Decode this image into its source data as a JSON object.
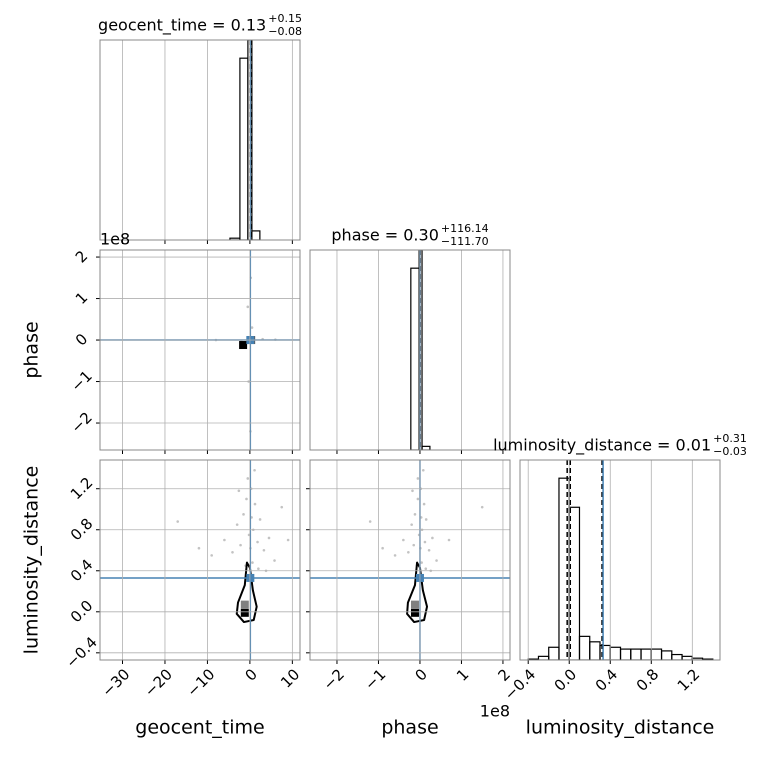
{
  "chart_data": [
    {
      "type": "hist",
      "title": "geocent_time = 0.13",
      "title_sup": "+0.15",
      "title_sub": "−0.08",
      "bins": [
        -4.7,
        -2.35,
        -0.47,
        0.47,
        2.35
      ],
      "counts": [
        0.01,
        1.0,
        1.1,
        0.05
      ],
      "xlim": [
        -35.3,
        11.8
      ],
      "ylim": [
        0,
        1.1
      ],
      "xticks": [
        -30,
        -20,
        -10,
        0,
        10
      ],
      "show_xticklabels": false,
      "quantiles": [
        0.05,
        0.13,
        0.28
      ],
      "truth": 0.1,
      "color": "#000000",
      "truth_color": "#4682b4",
      "grid": true
    },
    {
      "type": "scatter",
      "y_offset": "1e8",
      "xlim": [
        -35.3,
        11.8
      ],
      "ylim": [
        -2.65,
        2.17
      ],
      "xticks": [
        -30,
        -20,
        -10,
        0,
        10
      ],
      "show_xticklabels": false,
      "yticks": [
        {
          "value": -2,
          "label": "−2"
        },
        {
          "value": -1,
          "label": "−1"
        },
        0,
        1,
        2
      ],
      "show_yticklabels": true,
      "ylabel": "phase",
      "points": {
        "x": [
          0.2,
          -0.3,
          0.5,
          0.1,
          -0.5,
          3,
          -2,
          6,
          -8
        ],
        "y": [
          1.5,
          -1,
          0.3,
          -2.2,
          0.8,
          0.02,
          -0.03,
          0.01,
          0.0
        ]
      },
      "density": {
        "x": [
          -1.6,
          0.3
        ],
        "y": [
          -0.12,
          0.0
        ]
      },
      "density_colors": [
        "#000000",
        "#555555"
      ],
      "truth_x": 0.1,
      "truth_y": 0,
      "truth_color": "#4682b4",
      "point_color": "#888888",
      "grid": true
    },
    {
      "type": "hist",
      "title": "phase = 0.30",
      "title_sup": "+116.14",
      "title_sub": "−111.70",
      "bins": [
        -0.22,
        -0.02,
        0.05,
        0.24
      ],
      "counts": [
        1.0,
        1.1,
        0.02
      ],
      "xlim": [
        -2.65,
        2.17
      ],
      "ylim": [
        0,
        1.1
      ],
      "xticks": [
        -2,
        -1,
        0,
        1,
        2
      ],
      "show_xticklabels": false,
      "quantiles": [
        0,
        0,
        0
      ],
      "truth": 0,
      "color": "#000000",
      "truth_color": "#4682b4",
      "grid": true
    },
    {
      "type": "scatter",
      "xlim": [
        -35.3,
        11.8
      ],
      "ylim": [
        -0.47,
        1.48
      ],
      "xticks": [
        {
          "value": -30,
          "label": "−30"
        },
        {
          "value": -20,
          "label": "−20"
        },
        {
          "value": -10,
          "label": "−10"
        },
        0,
        10
      ],
      "show_xticklabels": true,
      "yticks": [
        {
          "value": -0.4,
          "label": "−0.4"
        },
        {
          "value": 0,
          "label": "0.0"
        },
        0.4,
        0.8,
        1.2
      ],
      "show_yticklabels": true,
      "xlabel": "geocent_time",
      "ylabel": "luminosity_distance",
      "points": {
        "x": [
          -0.5,
          0.3,
          1.2,
          -1.5,
          2.4,
          -3,
          0.8,
          -0.2,
          4.5,
          -6,
          1.8,
          -2.2,
          0.1,
          3.3,
          -4.1,
          -17,
          7.5,
          -9,
          5.8,
          0.6,
          -1,
          2,
          -0.8,
          1.1,
          -12,
          9,
          -0.3,
          0.4,
          -2.6,
          3.8
        ],
        "y": [
          1.3,
          1.2,
          1.05,
          0.95,
          0.9,
          0.85,
          0.8,
          0.75,
          0.72,
          0.7,
          0.68,
          0.65,
          0.62,
          0.6,
          0.58,
          0.88,
          1.02,
          0.55,
          0.5,
          0.48,
          0.45,
          0.42,
          1.1,
          1.38,
          0.62,
          0.7,
          0.35,
          0.92,
          1.18,
          0.4
        ]
      },
      "contour": {
        "x": [
          -0.7,
          -1.2,
          -2.8,
          -3.1,
          -1.4,
          0.9,
          1.6,
          0.7,
          0
        ],
        "y": [
          0.48,
          0.26,
          0.09,
          -0.02,
          -0.1,
          -0.08,
          0.05,
          0.21,
          0.43
        ]
      },
      "density": {
        "x": [
          -1.2,
          -1.2
        ],
        "y": [
          0.07,
          -0.01
        ]
      },
      "density_colors": [
        "#808080",
        "#000000"
      ],
      "truth_x": 0.1,
      "truth_y": 0.33,
      "truth_color": "#4682b4",
      "point_color": "#888888",
      "grid": true
    },
    {
      "type": "scatter",
      "x_offset": "1e8",
      "xlim": [
        -2.65,
        2.17
      ],
      "ylim": [
        -0.47,
        1.48
      ],
      "xticks": [
        {
          "value": -2,
          "label": "−2"
        },
        {
          "value": -1,
          "label": "−1"
        },
        0,
        1,
        2
      ],
      "show_xticklabels": true,
      "yticks": [
        -0.4,
        0,
        0.4,
        0.8,
        1.2
      ],
      "show_yticklabels": false,
      "xlabel": "phase",
      "points": {
        "x": [
          -0.05,
          0.02,
          0.1,
          -0.12,
          0.15,
          -0.2,
          0.05,
          -0.02,
          0.3,
          -0.4,
          0.12,
          -0.15,
          0.01,
          0.22,
          -0.28,
          -1.2,
          1.5,
          -0.6,
          0.4,
          0.04,
          -0.07,
          0.14,
          -0.05,
          0.08,
          -0.9,
          0.7,
          -0.02,
          0.03,
          -0.18,
          0.26
        ],
        "y": [
          1.3,
          1.2,
          1.05,
          0.95,
          0.9,
          0.85,
          0.8,
          0.75,
          0.72,
          0.7,
          0.68,
          0.65,
          0.62,
          0.6,
          0.58,
          0.88,
          1.02,
          0.55,
          0.5,
          0.48,
          0.45,
          0.42,
          1.1,
          1.38,
          0.62,
          0.7,
          0.35,
          0.92,
          1.18,
          0.4
        ]
      },
      "contour": {
        "x": [
          -0.07,
          -0.12,
          -0.29,
          -0.31,
          -0.14,
          0.1,
          0.17,
          0.07,
          0
        ],
        "y": [
          0.48,
          0.26,
          0.09,
          -0.02,
          -0.1,
          -0.08,
          0.05,
          0.21,
          0.43
        ]
      },
      "density": {
        "x": [
          -0.12,
          -0.12
        ],
        "y": [
          0.07,
          -0.01
        ]
      },
      "density_colors": [
        "#808080",
        "#000000"
      ],
      "truth_x": 0,
      "truth_y": 0.33,
      "truth_color": "#4682b4",
      "point_color": "#888888",
      "grid": true
    },
    {
      "type": "hist",
      "title": "luminosity_distance = 0.01",
      "title_sup": "+0.31",
      "title_sub": "−0.03",
      "bins": [
        -0.4,
        -0.3,
        -0.2,
        -0.1,
        0,
        0.1,
        0.2,
        0.3,
        0.4,
        0.5,
        0.6,
        0.7,
        0.8,
        0.9,
        1.0,
        1.1,
        1.2,
        1.3,
        1.4
      ],
      "counts": [
        0.005,
        0.02,
        0.07,
        1.0,
        0.84,
        0.13,
        0.1,
        0.08,
        0.07,
        0.06,
        0.06,
        0.06,
        0.06,
        0.05,
        0.03,
        0.02,
        0.01,
        0.005
      ],
      "xlim": [
        -0.48,
        1.47
      ],
      "ylim": [
        0,
        1.1
      ],
      "xticks": [
        {
          "value": -0.4,
          "label": "−0.4"
        },
        {
          "value": 0,
          "label": "0.0"
        },
        0.4,
        0.8,
        1.2
      ],
      "show_xticklabels": true,
      "xlabel": "luminosity_distance",
      "quantiles": [
        -0.02,
        0.01,
        0.32
      ],
      "truth": 0.33,
      "color": "#000000",
      "truth_color": "#4682b4",
      "grid": true
    }
  ]
}
